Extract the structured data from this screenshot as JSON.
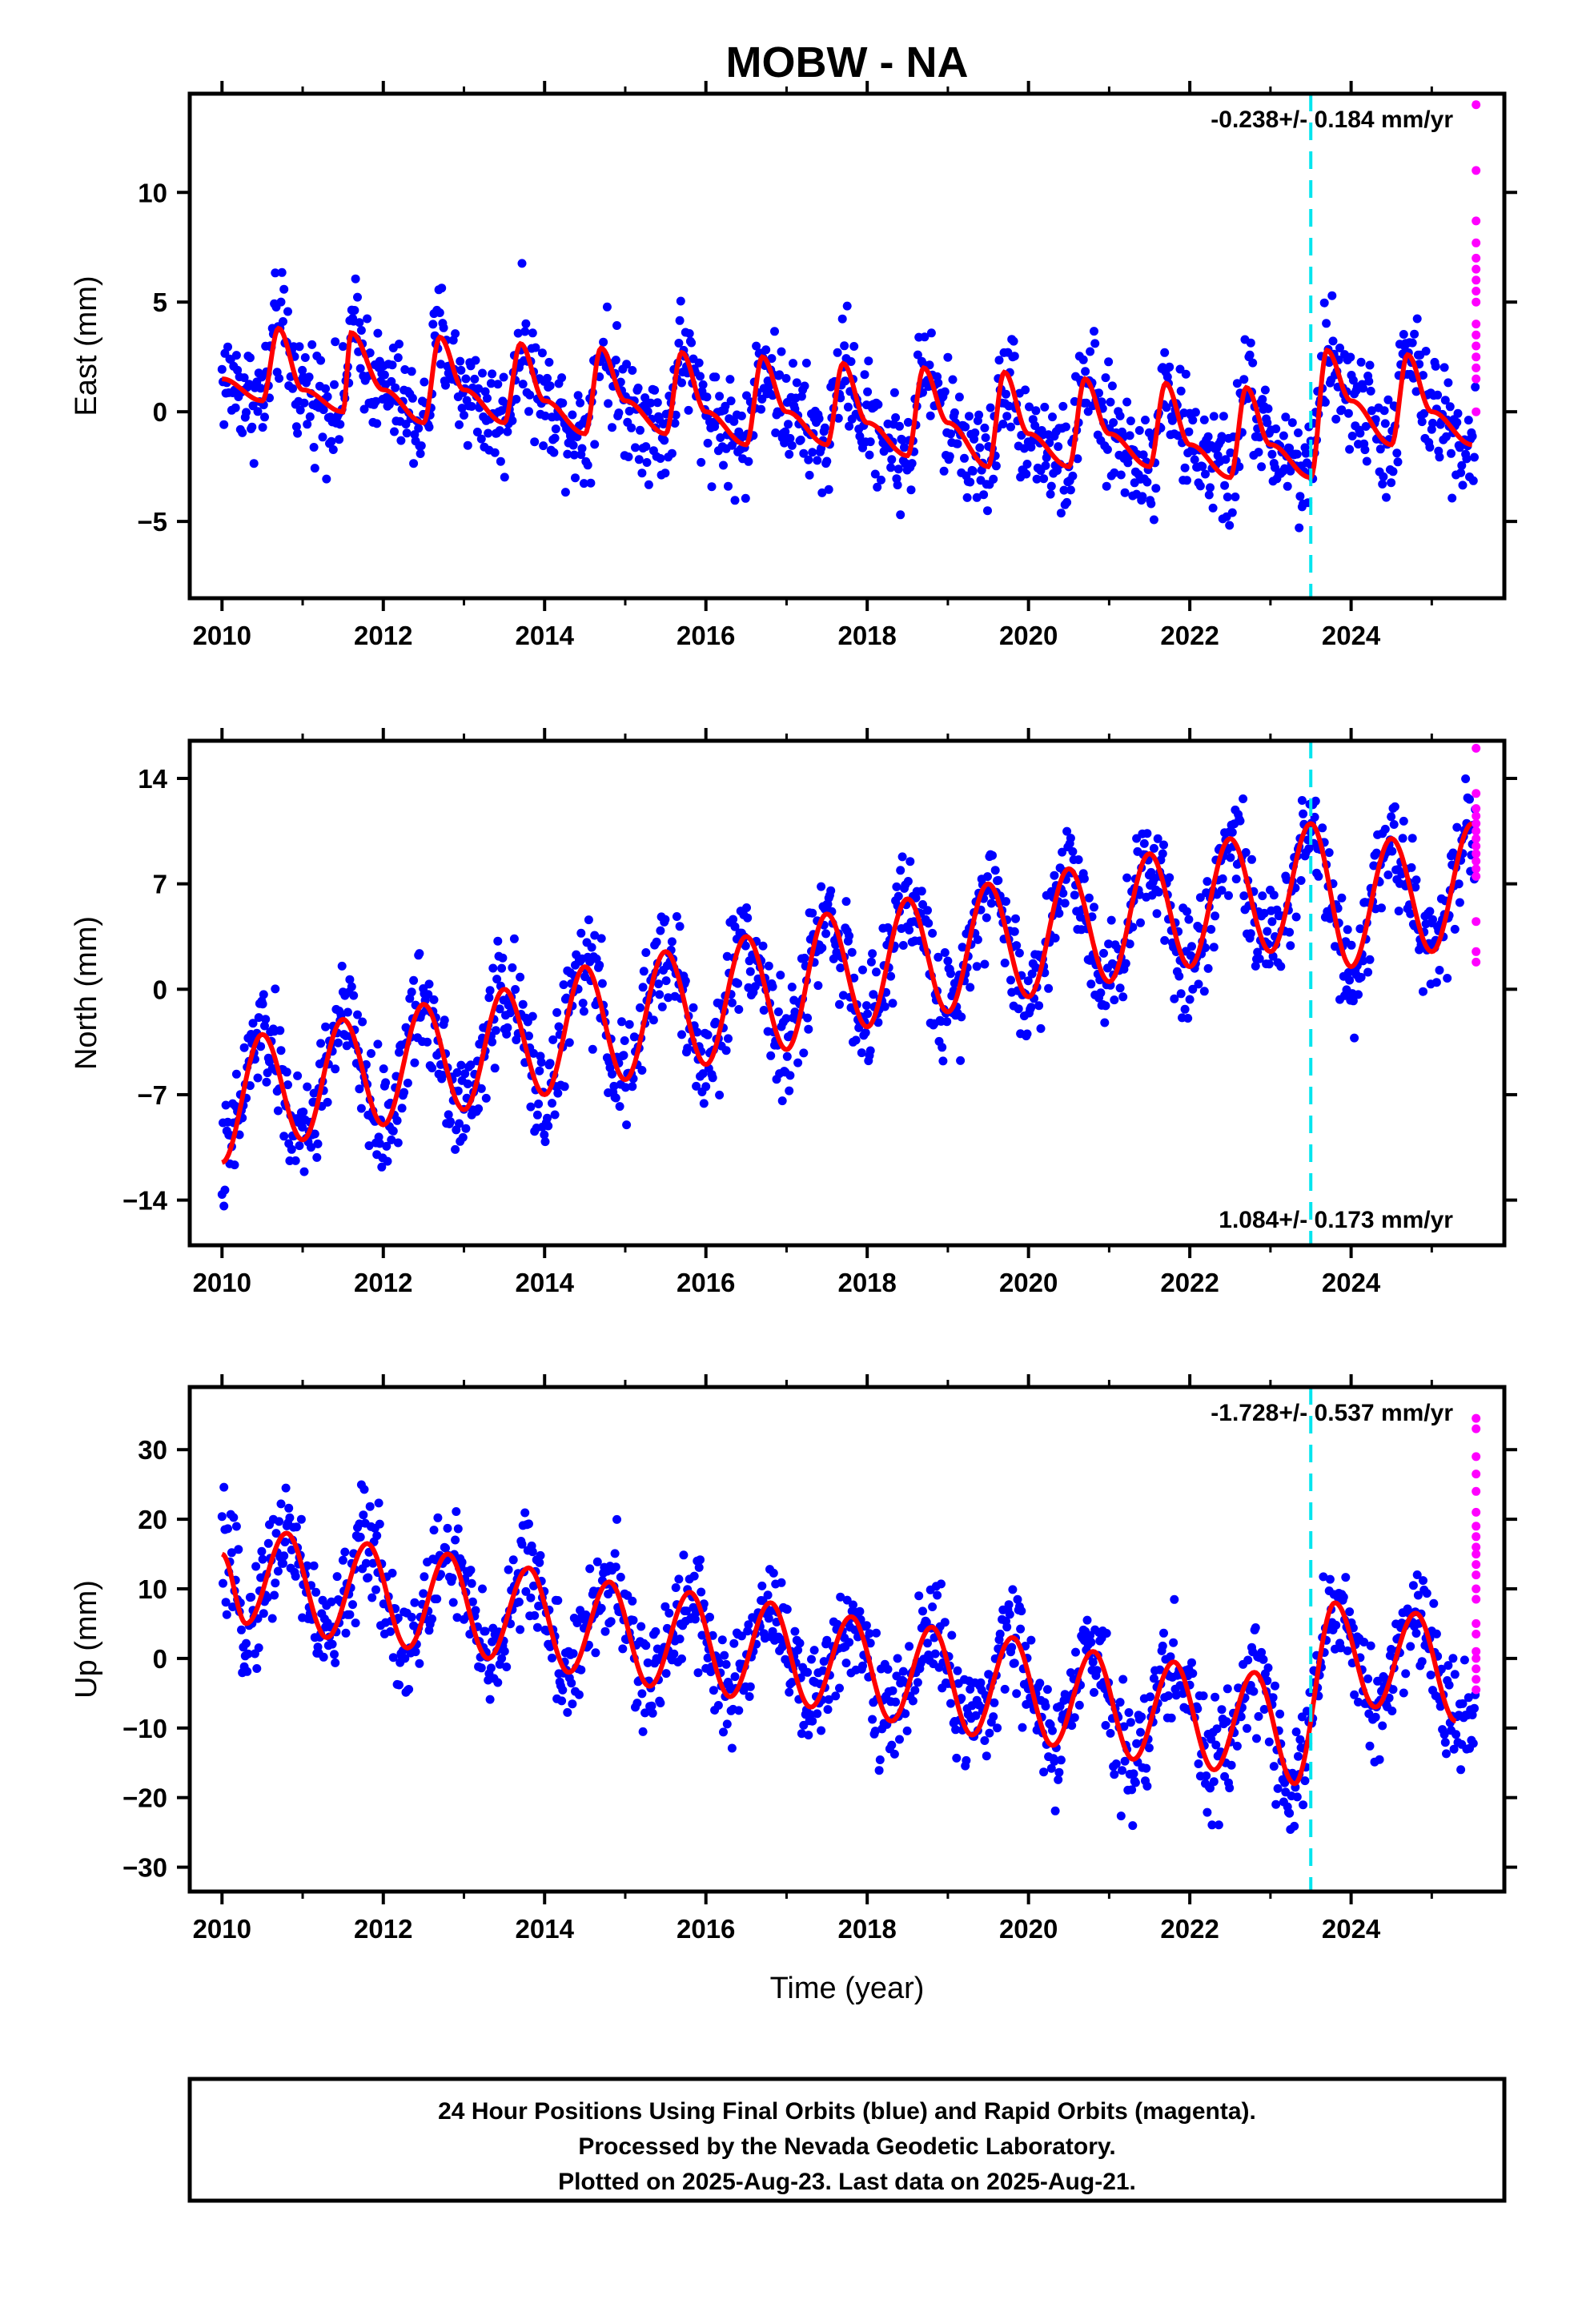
{
  "title": "MOBW - NA",
  "colors": {
    "final": "#0000ff",
    "rapid": "#ff00ff",
    "model": "#ff0000",
    "event": "#00e5ee",
    "axis": "#000000"
  },
  "xaxis": {
    "label": "Time (year)",
    "range": [
      2009.6,
      2025.9
    ],
    "ticks": [
      2010,
      2012,
      2014,
      2016,
      2018,
      2020,
      2022,
      2024
    ]
  },
  "event_line_year": 2023.5,
  "footer": {
    "line1": "24 Hour Positions Using Final Orbits (blue) and Rapid Orbits (magenta).",
    "line2": "Processed by the Nevada Geodetic Laboratory.",
    "line3": "Plotted on 2025-Aug-23. Last data on 2025-Aug-21."
  },
  "chart_data": [
    {
      "type": "scatter",
      "component": "east",
      "ylabel": "East (mm)",
      "rate_label": "-0.238+/- 0.184 mm/yr",
      "rate_position": "top-right",
      "ylim": [
        -8.5,
        14.5
      ],
      "yticks": [
        -5,
        0,
        5,
        10
      ],
      "x": [
        2010.0,
        2010.5,
        2010.7,
        2011.0,
        2011.5,
        2011.6,
        2012.0,
        2012.5,
        2012.7,
        2013.0,
        2013.5,
        2013.7,
        2014.0,
        2014.5,
        2014.7,
        2015.0,
        2015.5,
        2015.7,
        2016.0,
        2016.5,
        2016.7,
        2017.0,
        2017.5,
        2017.7,
        2018.0,
        2018.5,
        2018.7,
        2019.0,
        2019.5,
        2019.7,
        2020.0,
        2020.5,
        2020.7,
        2021.0,
        2021.5,
        2021.7,
        2022.0,
        2022.5,
        2022.7,
        2023.0,
        2023.5,
        2023.7,
        2024.0,
        2024.5,
        2024.7,
        2025.0,
        2025.5
      ],
      "y": [
        1.5,
        0.5,
        3.8,
        1.0,
        0.0,
        3.6,
        1.0,
        -0.5,
        3.4,
        1.0,
        -0.5,
        3.1,
        0.5,
        -1.0,
        2.9,
        0.5,
        -1.0,
        2.7,
        0.0,
        -1.5,
        2.5,
        0.0,
        -1.5,
        2.2,
        -0.5,
        -2.0,
        2.0,
        -0.5,
        -2.5,
        1.8,
        -1.0,
        -2.5,
        1.5,
        -1.0,
        -2.5,
        1.3,
        -1.5,
        -3.0,
        1.1,
        -1.5,
        -3.0,
        2.8,
        0.5,
        -1.5,
        2.6,
        0.0,
        -1.5
      ],
      "rapid_values": [
        14.0,
        11.0,
        8.7,
        7.7,
        7.0,
        6.5,
        6.0,
        5.5,
        5.0,
        4.0,
        3.5,
        3.0,
        2.5,
        2.0,
        1.5,
        0.0
      ]
    },
    {
      "type": "scatter",
      "component": "north",
      "ylabel": "North (mm)",
      "rate_label": "1.084+/- 0.173 mm/yr",
      "rate_position": "bottom-right",
      "ylim": [
        -17,
        16.5
      ],
      "yticks": [
        -14,
        -7,
        0,
        7,
        14
      ],
      "x": [
        2010.0,
        2010.5,
        2011.0,
        2011.5,
        2012.0,
        2012.5,
        2013.0,
        2013.5,
        2014.0,
        2014.5,
        2015.0,
        2015.5,
        2016.0,
        2016.5,
        2017.0,
        2017.5,
        2018.0,
        2018.5,
        2019.0,
        2019.5,
        2020.0,
        2020.5,
        2021.0,
        2021.5,
        2022.0,
        2022.5,
        2023.0,
        2023.5,
        2024.0,
        2024.5,
        2025.0,
        2025.5
      ],
      "y": [
        -11.5,
        -3.0,
        -10.0,
        -2.0,
        -9.0,
        -1.0,
        -8.0,
        0.0,
        -7.0,
        1.5,
        -6.0,
        2.5,
        -5.0,
        3.5,
        -4.0,
        5.0,
        -2.5,
        6.0,
        -1.5,
        7.0,
        -0.5,
        8.0,
        0.5,
        9.0,
        1.5,
        10.0,
        2.5,
        11.0,
        1.5,
        10.0,
        2.5,
        11.0
      ],
      "rapid_values": [
        16.0,
        13.0,
        12.0,
        11.5,
        11.0,
        10.5,
        10.0,
        9.5,
        9.0,
        8.5,
        8.0,
        7.5,
        4.5,
        2.5,
        1.8
      ]
    },
    {
      "type": "scatter",
      "component": "up",
      "ylabel": "Up (mm)",
      "rate_label": "-1.728+/- 0.537 mm/yr",
      "rate_position": "top-right",
      "ylim": [
        -33.5,
        39
      ],
      "yticks": [
        -30,
        -20,
        -10,
        0,
        10,
        20,
        30
      ],
      "x": [
        2010.0,
        2010.3,
        2010.8,
        2011.3,
        2011.8,
        2012.3,
        2012.8,
        2013.3,
        2013.8,
        2014.3,
        2014.8,
        2015.3,
        2015.8,
        2016.3,
        2016.8,
        2017.3,
        2017.8,
        2018.3,
        2018.8,
        2019.3,
        2019.8,
        2020.3,
        2020.8,
        2021.3,
        2021.8,
        2022.3,
        2022.8,
        2023.3,
        2023.8,
        2024.3,
        2024.8,
        2025.3
      ],
      "y": [
        15.0,
        5.0,
        18.0,
        3.0,
        16.5,
        1.5,
        15.0,
        0.0,
        13.0,
        -2.0,
        11.0,
        -4.0,
        9.5,
        -5.5,
        8.0,
        -7.0,
        6.0,
        -9.0,
        4.5,
        -11.0,
        3.0,
        -12.5,
        1.0,
        -14.5,
        -0.5,
        -16.0,
        -2.0,
        -18.0,
        8.0,
        -7.0,
        6.5,
        -9.0
      ],
      "rapid_values": [
        34.5,
        33.0,
        29.0,
        26.5,
        24.0,
        21.0,
        19.0,
        17.5,
        16.0,
        15.0,
        13.5,
        12.0,
        10.0,
        8.5,
        5.0,
        3.5,
        1.0,
        0.0,
        -1.5,
        -3.0,
        -4.5
      ]
    }
  ]
}
